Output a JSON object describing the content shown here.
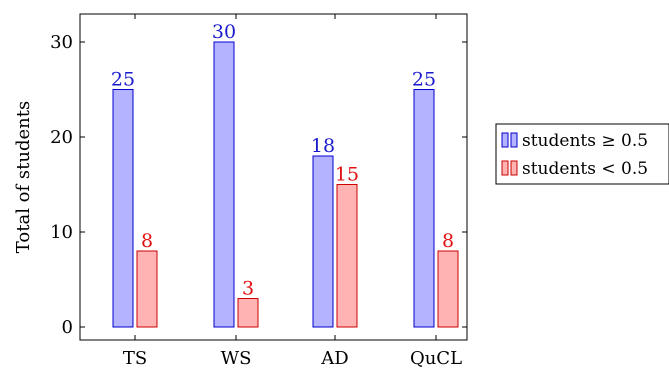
{
  "chart_data": {
    "type": "bar",
    "categories": [
      "TS",
      "WS",
      "AD",
      "QuCL"
    ],
    "ylabel": "Total of students",
    "ylim": [
      0,
      33
    ],
    "yticks": [
      0,
      10,
      20,
      30
    ],
    "legend_position": "right",
    "series": [
      {
        "name": "students ≥ 0.5",
        "values": [
          25,
          30,
          18,
          25
        ],
        "fill": "#b3b3ff",
        "stroke": "#0000cc",
        "label_color": "#1a1acc"
      },
      {
        "name": "students < 0.5",
        "values": [
          8,
          3,
          15,
          8
        ],
        "fill": "#ffb3b3",
        "stroke": "#cc0000",
        "label_color": "#e01010"
      }
    ]
  }
}
